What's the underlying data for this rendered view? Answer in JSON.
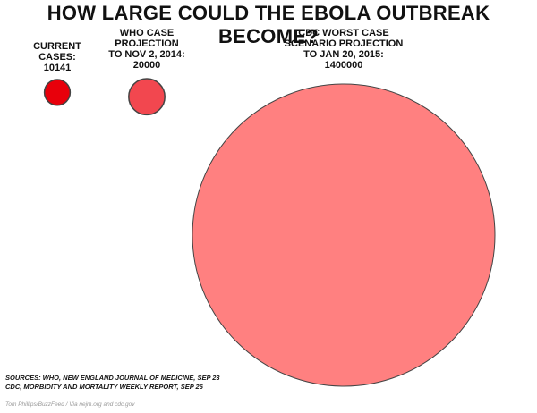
{
  "title": "HOW LARGE COULD THE EBOLA OUTBREAK BECOME?",
  "chart_data": {
    "type": "bubble",
    "title": "HOW LARGE COULD THE EBOLA OUTBREAK BECOME?",
    "size_encoding": "area proportional to value",
    "series": [
      {
        "label_lines": [
          "CURRENT",
          "CASES:",
          "10141"
        ],
        "value": 10141,
        "color": "#e8000b"
      },
      {
        "label_lines": [
          "WHO CASE",
          "PROJECTION",
          "TO NOV 2, 2014:",
          "20000"
        ],
        "value": 20000,
        "color": "#f2474f"
      },
      {
        "label_lines": [
          "CDC WORST CASE",
          "SCENARIO PROJECTION",
          "TO JAN 20, 2015:",
          "1400000"
        ],
        "value": 1400000,
        "color": "#ff8080"
      }
    ]
  },
  "sources": {
    "line1": "SOURCES: WHO, NEW ENGLAND JOURNAL OF MEDICINE, SEP 23",
    "line2": "CDC, MORBIDITY AND MORTALITY WEEKLY REPORT, SEP 26"
  },
  "credit": "Tom Phillips/BuzzFeed / Via nejm.org and cdc.gov"
}
